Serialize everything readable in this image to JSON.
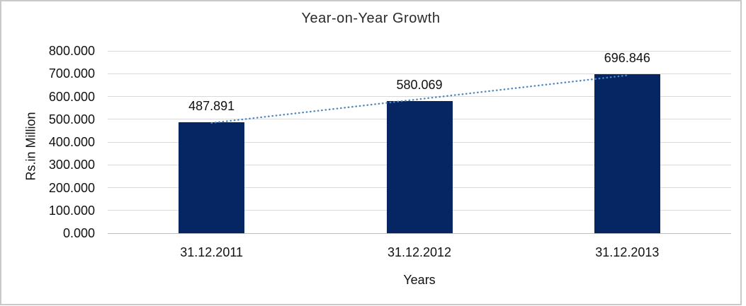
{
  "chart_data": {
    "type": "bar",
    "title": "Year-on-Year Growth",
    "categories": [
      "31.12.2011",
      "31.12.2012",
      "31.12.2013"
    ],
    "values": [
      487.891,
      580.069,
      696.846
    ],
    "data_labels": [
      "487.891",
      "580.069",
      "696.846"
    ],
    "xlabel": "Years",
    "ylabel": "Rs.in Million",
    "ylim": [
      0,
      800
    ],
    "ytick_step": 100,
    "ytick_labels": [
      "0.000",
      "100.000",
      "200.000",
      "300.000",
      "400.000",
      "500.000",
      "600.000",
      "700.000",
      "800.000"
    ],
    "grid": true,
    "legend": false,
    "trendline": {
      "type": "linear",
      "style": "dotted"
    },
    "colors": {
      "bar": "#062563",
      "trendline": "#4e87c3",
      "gridline": "#d9d9d9",
      "axis_line": "#bdbdbd",
      "frame_border": "#c9c9c9",
      "background": "#ffffff",
      "text": "#111111"
    }
  }
}
